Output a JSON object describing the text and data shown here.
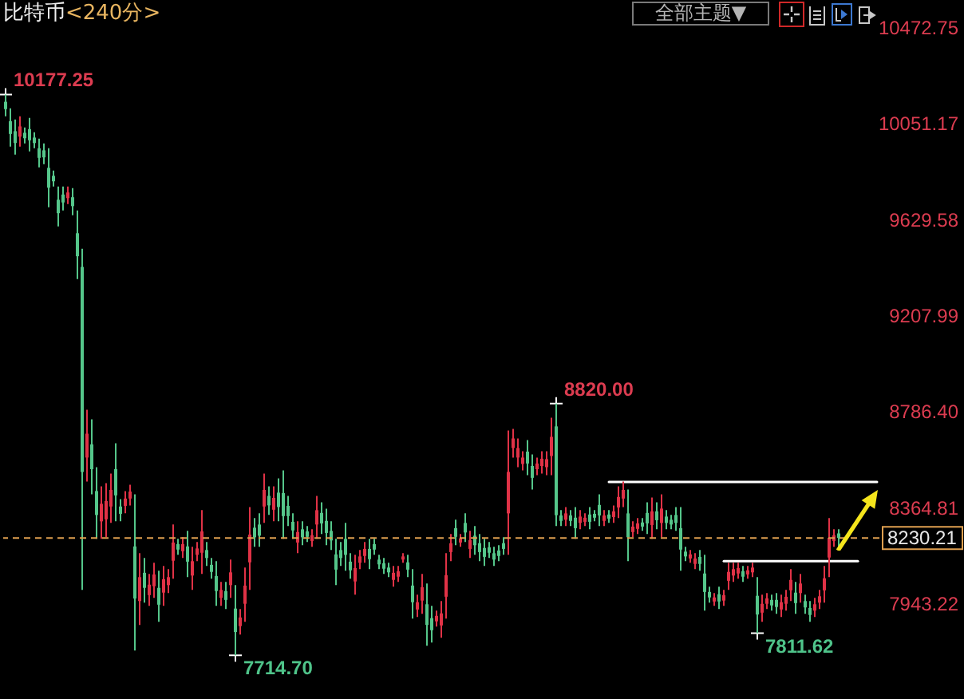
{
  "chart_data": {
    "type": "candlestick",
    "title": "比特币",
    "subtitle": "<240分>",
    "categories": [
      null,
      null,
      null,
      null,
      null,
      null,
      null,
      null,
      null,
      null,
      null,
      null,
      null,
      null,
      null,
      null,
      null,
      null,
      null,
      null,
      null,
      null,
      null,
      null,
      null,
      null,
      null,
      null,
      null,
      null,
      null,
      null,
      null,
      null,
      null,
      null,
      null,
      null,
      null,
      null,
      null,
      null,
      null,
      null,
      null,
      null,
      null,
      null,
      null,
      null,
      null,
      null,
      null,
      null,
      null,
      null,
      null,
      null,
      null,
      null,
      null,
      null,
      null,
      null,
      null,
      null,
      null,
      null,
      null,
      null,
      null,
      null,
      null,
      null,
      null,
      null,
      null,
      null,
      null,
      null,
      null,
      null,
      null,
      null,
      null,
      null,
      null,
      null,
      null,
      null,
      null,
      null,
      null,
      null,
      null,
      null,
      null,
      null,
      null,
      null,
      null,
      null,
      null,
      null,
      null,
      null,
      null,
      null,
      null,
      null,
      null,
      null,
      null,
      null,
      null,
      null,
      null,
      null,
      null,
      null,
      null,
      null,
      null,
      null,
      null,
      null,
      null,
      null,
      null,
      null,
      null,
      null,
      null,
      null,
      null,
      null,
      null,
      null,
      null,
      null,
      null,
      null,
      null,
      null,
      null,
      null,
      null,
      null,
      null,
      null,
      null,
      null,
      null,
      null,
      null,
      null,
      null,
      null,
      null,
      null,
      null,
      null,
      null,
      null,
      null,
      null,
      null,
      null,
      null,
      null,
      null,
      null,
      null,
      null,
      null,
      null,
      null,
      null,
      null,
      null,
      null,
      null,
      null
    ],
    "ohlc": [
      [
        10145,
        10177.25,
        10081,
        10113
      ],
      [
        10060,
        10116,
        9948,
        10004
      ],
      [
        10016,
        10067,
        9913,
        9964
      ],
      [
        9992,
        10081,
        9948,
        10037
      ],
      [
        10009,
        10032,
        9962,
        9985
      ],
      [
        10025,
        10074,
        9927,
        9976
      ],
      [
        9988,
        10011,
        9941,
        9964
      ],
      [
        9941,
        9983,
        9857,
        9899
      ],
      [
        9932,
        9962,
        9871,
        9901
      ],
      [
        9855,
        9941,
        9682,
        9768
      ],
      [
        9820,
        9843,
        9773,
        9796
      ],
      [
        9715,
        9773,
        9598,
        9656
      ],
      [
        9738,
        9773,
        9668,
        9703
      ],
      [
        9722,
        9773,
        9696,
        9747
      ],
      [
        9726,
        9766,
        9647,
        9687
      ],
      [
        9568,
        9668,
        9367,
        9467
      ],
      [
        9420,
        9500,
        8002,
        8520
      ],
      [
        8583,
        8793,
        8478,
        8688
      ],
      [
        8641,
        8751,
        8422,
        8532
      ],
      [
        8436,
        8541,
        8226,
        8331
      ],
      [
        8303,
        8457,
        8226,
        8380
      ],
      [
        8312,
        8471,
        8233,
        8392
      ],
      [
        8368,
        8513,
        8296,
        8441
      ],
      [
        8532,
        8646,
        8303,
        8417
      ],
      [
        8368,
        8401,
        8303,
        8336
      ],
      [
        8371,
        8436,
        8338,
        8403
      ],
      [
        8403,
        8464,
        8373,
        8434
      ],
      [
        8193,
        8422,
        7736,
        7964
      ],
      [
        7953,
        8163,
        7848,
        8058
      ],
      [
        8077,
        8142,
        7946,
        8011
      ],
      [
        7979,
        8072,
        7932,
        8025
      ],
      [
        8018,
        8121,
        7967,
        8070
      ],
      [
        8011,
        8086,
        7862,
        7937
      ],
      [
        7990,
        8107,
        7932,
        8049
      ],
      [
        8023,
        8093,
        7988,
        8058
      ],
      [
        8130,
        8289,
        8051,
        8210
      ],
      [
        8203,
        8226,
        8156,
        8179
      ],
      [
        8172,
        8233,
        8142,
        8203
      ],
      [
        8193,
        8261,
        8058,
        8126
      ],
      [
        8065,
        8191,
        8002,
        8128
      ],
      [
        8156,
        8212,
        8128,
        8184
      ],
      [
        8165,
        8352,
        8072,
        8259
      ],
      [
        8177,
        8212,
        8107,
        8142
      ],
      [
        8112,
        8142,
        8051,
        8081
      ],
      [
        8063,
        8128,
        7932,
        7997
      ],
      [
        7967,
        8037,
        7932,
        8002
      ],
      [
        7997,
        8037,
        7918,
        7958
      ],
      [
        8023,
        8135,
        7967,
        8079
      ],
      [
        7920,
        8023,
        7714.7,
        7817
      ],
      [
        7843,
        7918,
        7806,
        7881
      ],
      [
        7941,
        8100,
        7862,
        8021
      ],
      [
        8123,
        8366,
        8002,
        8245
      ],
      [
        8275,
        8317,
        8191,
        8233
      ],
      [
        8289,
        8338,
        8191,
        8240
      ],
      [
        8368,
        8513,
        8296,
        8441
      ],
      [
        8415,
        8457,
        8331,
        8373
      ],
      [
        8354,
        8457,
        8303,
        8406
      ],
      [
        8429,
        8492,
        8303,
        8366
      ],
      [
        8427,
        8527,
        8226,
        8326
      ],
      [
        8371,
        8415,
        8282,
        8326
      ],
      [
        8301,
        8338,
        8226,
        8263
      ],
      [
        8210,
        8303,
        8163,
        8256
      ],
      [
        8268,
        8303,
        8198,
        8233
      ],
      [
        8259,
        8282,
        8212,
        8235
      ],
      [
        8217,
        8268,
        8191,
        8242
      ],
      [
        8289,
        8415,
        8226,
        8352
      ],
      [
        8340,
        8387,
        8247,
        8294
      ],
      [
        8305,
        8359,
        8198,
        8252
      ],
      [
        8261,
        8303,
        8177,
        8219
      ],
      [
        8158,
        8226,
        8023,
        8091
      ],
      [
        8177,
        8212,
        8107,
        8142
      ],
      [
        8226,
        8296,
        8086,
        8156
      ],
      [
        8126,
        8163,
        8051,
        8088
      ],
      [
        8039,
        8156,
        7981,
        8098
      ],
      [
        8121,
        8177,
        8093,
        8149
      ],
      [
        8151,
        8212,
        8121,
        8182
      ],
      [
        8182,
        8226,
        8093,
        8137
      ],
      [
        8203,
        8226,
        8156,
        8179
      ],
      [
        8135,
        8156,
        8093,
        8114
      ],
      [
        8119,
        8142,
        8072,
        8095
      ],
      [
        8100,
        8121,
        8058,
        8079
      ],
      [
        8046,
        8107,
        8016,
        8077
      ],
      [
        8060,
        8107,
        8037,
        8084
      ],
      [
        8135,
        8163,
        8121,
        8149
      ],
      [
        8123,
        8156,
        8058,
        8091
      ],
      [
        8021,
        8093,
        7876,
        7948
      ],
      [
        7916,
        7981,
        7883,
        7948
      ],
      [
        7955,
        8072,
        7897,
        8014
      ],
      [
        7939,
        8030,
        7757,
        7848
      ],
      [
        7878,
        7932,
        7771,
        7825
      ],
      [
        7864,
        7911,
        7841,
        7888
      ],
      [
        7846,
        7953,
        7792,
        7899
      ],
      [
        7972,
        8163,
        7876,
        8067
      ],
      [
        8168,
        8247,
        8128,
        8207
      ],
      [
        8273,
        8310,
        8198,
        8235
      ],
      [
        8210,
        8247,
        8191,
        8228
      ],
      [
        8296,
        8338,
        8212,
        8254
      ],
      [
        8182,
        8261,
        8142,
        8221
      ],
      [
        8240,
        8282,
        8156,
        8198
      ],
      [
        8207,
        8247,
        8128,
        8168
      ],
      [
        8186,
        8226,
        8107,
        8147
      ],
      [
        8189,
        8212,
        8142,
        8165
      ],
      [
        8163,
        8191,
        8107,
        8135
      ],
      [
        8175,
        8198,
        8128,
        8151
      ],
      [
        8207,
        8233,
        8156,
        8182
      ],
      [
        8338,
        8702,
        8156,
        8520
      ],
      [
        8625,
        8709,
        8583,
        8667
      ],
      [
        8583,
        8667,
        8541,
        8625
      ],
      [
        8555,
        8611,
        8527,
        8583
      ],
      [
        8609,
        8660,
        8506,
        8557
      ],
      [
        8546,
        8597,
        8443,
        8494
      ],
      [
        8532,
        8583,
        8506,
        8557
      ],
      [
        8546,
        8611,
        8513,
        8578
      ],
      [
        8541,
        8611,
        8506,
        8576
      ],
      [
        8590,
        8758,
        8506,
        8674
      ],
      [
        8720,
        8820,
        8282,
        8330
      ],
      [
        8329,
        8352,
        8282,
        8305
      ],
      [
        8310,
        8366,
        8282,
        8338
      ],
      [
        8329,
        8352,
        8282,
        8305
      ],
      [
        8319,
        8366,
        8226,
        8273
      ],
      [
        8296,
        8352,
        8268,
        8324
      ],
      [
        8301,
        8338,
        8282,
        8319
      ],
      [
        8333,
        8366,
        8268,
        8301
      ],
      [
        8336,
        8352,
        8303,
        8319
      ],
      [
        8375,
        8422,
        8282,
        8329
      ],
      [
        8305,
        8352,
        8282,
        8329
      ],
      [
        8333,
        8352,
        8296,
        8315
      ],
      [
        8322,
        8373,
        8296,
        8347
      ],
      [
        8364,
        8457,
        8317,
        8410
      ],
      [
        8403,
        8478,
        8366,
        8441
      ],
      [
        8338,
        8443,
        8128,
        8233
      ],
      [
        8256,
        8303,
        8233,
        8280
      ],
      [
        8270,
        8317,
        8247,
        8294
      ],
      [
        8298,
        8317,
        8261,
        8280
      ],
      [
        8340,
        8387,
        8247,
        8294
      ],
      [
        8287,
        8408,
        8226,
        8347
      ],
      [
        8347,
        8387,
        8268,
        8308
      ],
      [
        8296,
        8422,
        8233,
        8359
      ],
      [
        8324,
        8352,
        8268,
        8296
      ],
      [
        8310,
        8331,
        8268,
        8289
      ],
      [
        8331,
        8366,
        8261,
        8296
      ],
      [
        8273,
        8366,
        8086,
        8179
      ],
      [
        8170,
        8191,
        8128,
        8149
      ],
      [
        8140,
        8177,
        8121,
        8158
      ],
      [
        8116,
        8163,
        8093,
        8140
      ],
      [
        8147,
        8177,
        8086,
        8116
      ],
      [
        8074,
        8156,
        7911,
        7993
      ],
      [
        7993,
        8016,
        7946,
        7969
      ],
      [
        7951,
        7988,
        7932,
        7969
      ],
      [
        7983,
        8016,
        7918,
        7951
      ],
      [
        7955,
        8002,
        7932,
        7979
      ],
      [
        8042,
        8121,
        8002,
        8081
      ],
      [
        8065,
        8121,
        8037,
        8093
      ],
      [
        8074,
        8121,
        8051,
        8098
      ],
      [
        8084,
        8107,
        8037,
        8060
      ],
      [
        8070,
        8107,
        8051,
        8088
      ],
      [
        8079,
        8121,
        8058,
        8100
      ],
      [
        7976,
        8058,
        7811.62,
        7894
      ],
      [
        7902,
        7981,
        7862,
        7941
      ],
      [
        7941,
        7988,
        7918,
        7965
      ],
      [
        7958,
        7981,
        7911,
        7934
      ],
      [
        7958,
        7988,
        7897,
        7927
      ],
      [
        7916,
        7981,
        7883,
        7948
      ],
      [
        7941,
        8002,
        7911,
        7972
      ],
      [
        8000,
        8093,
        7953,
        8046
      ],
      [
        7990,
        8037,
        7897,
        7944
      ],
      [
        7988,
        8072,
        7946,
        8030
      ],
      [
        7953,
        7981,
        7897,
        7925
      ],
      [
        7923,
        7953,
        7862,
        7892
      ],
      [
        7911,
        7967,
        7883,
        7939
      ],
      [
        7946,
        8002,
        7918,
        7974
      ],
      [
        8000,
        8107,
        7946,
        8053
      ],
      [
        8144,
        8317,
        8058,
        8231
      ],
      [
        8217,
        8268,
        8191,
        8242
      ],
      [
        8250,
        8268,
        8177,
        8230.21
      ],
      null,
      null,
      null,
      null,
      null,
      null,
      null,
      null
    ],
    "colors": [
      "#55c68a",
      "#55c68a",
      "#55c68a",
      "#e03246",
      "#55c68a",
      "#55c68a",
      "#55c68a",
      "#55c68a",
      "#55c68a",
      "#55c68a",
      "#55c68a",
      "#55c68a",
      "#55c68a",
      "#e03246",
      "#55c68a",
      "#55c68a",
      "#55c68a",
      "#e03246",
      "#55c68a",
      "#55c68a",
      "#e03246",
      "#e03246",
      "#e03246",
      "#55c68a",
      "#55c68a",
      "#e03246",
      "#e03246",
      "#55c68a",
      "#e03246",
      "#55c68a",
      "#e03246",
      "#e03246",
      "#55c68a",
      "#e03246",
      "#e03246",
      "#e03246",
      "#55c68a",
      "#e03246",
      "#55c68a",
      "#e03246",
      "#e03246",
      "#e03246",
      "#55c68a",
      "#55c68a",
      "#55c68a",
      "#e03246",
      "#55c68a",
      "#e03246",
      "#55c68a",
      "#e03246",
      "#e03246",
      "#e03246",
      "#55c68a",
      "#55c68a",
      "#e03246",
      "#55c68a",
      "#e03246",
      "#55c68a",
      "#55c68a",
      "#55c68a",
      "#55c68a",
      "#e03246",
      "#55c68a",
      "#55c68a",
      "#e03246",
      "#e03246",
      "#55c68a",
      "#55c68a",
      "#55c68a",
      "#55c68a",
      "#55c68a",
      "#55c68a",
      "#55c68a",
      "#e03246",
      "#e03246",
      "#e03246",
      "#55c68a",
      "#55c68a",
      "#55c68a",
      "#55c68a",
      "#55c68a",
      "#e03246",
      "#e03246",
      "#e03246",
      "#55c68a",
      "#55c68a",
      "#e03246",
      "#e03246",
      "#55c68a",
      "#55c68a",
      "#e03246",
      "#e03246",
      "#e03246",
      "#e03246",
      "#55c68a",
      "#e03246",
      "#55c68a",
      "#e03246",
      "#55c68a",
      "#55c68a",
      "#55c68a",
      "#55c68a",
      "#55c68a",
      "#55c68a",
      "#55c68a",
      "#e03246",
      "#e03246",
      "#e03246",
      "#e03246",
      "#55c68a",
      "#55c68a",
      "#e03246",
      "#e03246",
      "#e03246",
      "#e03246",
      "#55c68a",
      "#55c68a",
      "#e03246",
      "#55c68a",
      "#55c68a",
      "#e03246",
      "#e03246",
      "#55c68a",
      "#55c68a",
      "#55c68a",
      "#e03246",
      "#55c68a",
      "#e03246",
      "#e03246",
      "#e03246",
      "#55c68a",
      "#e03246",
      "#e03246",
      "#55c68a",
      "#55c68a",
      "#e03246",
      "#55c68a",
      "#e03246",
      "#55c68a",
      "#55c68a",
      "#55c68a",
      "#55c68a",
      "#55c68a",
      "#e03246",
      "#e03246",
      "#55c68a",
      "#55c68a",
      "#55c68a",
      "#e03246",
      "#55c68a",
      "#e03246",
      "#e03246",
      "#e03246",
      "#e03246",
      "#55c68a",
      "#e03246",
      "#e03246",
      "#55c68a",
      "#e03246",
      "#e03246",
      "#55c68a",
      "#55c68a",
      "#e03246",
      "#e03246",
      "#e03246",
      "#55c68a",
      "#e03246",
      "#55c68a",
      "#55c68a",
      "#e03246",
      "#e03246",
      "#e03246",
      "#e03246",
      "#e03246",
      "#55c68a",
      null,
      null,
      null,
      null,
      null,
      null,
      null,
      null
    ],
    "value_labels": [
      "10177.25",
      null,
      null,
      null,
      null,
      null,
      null,
      null,
      null,
      null,
      null,
      null,
      null,
      null,
      null,
      null,
      null,
      null,
      null,
      null,
      null,
      null,
      null,
      null,
      null,
      null,
      null,
      null,
      null,
      null,
      null,
      null,
      null,
      null,
      null,
      null,
      null,
      null,
      null,
      null,
      null,
      null,
      null,
      null,
      null,
      null,
      null,
      null,
      "7714.70",
      null,
      null,
      null,
      null,
      null,
      null,
      null,
      null,
      null,
      null,
      null,
      null,
      null,
      null,
      null,
      null,
      null,
      null,
      null,
      null,
      null,
      null,
      null,
      null,
      null,
      null,
      null,
      null,
      null,
      null,
      null,
      null,
      null,
      null,
      null,
      null,
      null,
      null,
      null,
      null,
      null,
      null,
      null,
      null,
      null,
      null,
      null,
      null,
      null,
      null,
      null,
      null,
      null,
      null,
      null,
      null,
      null,
      null,
      null,
      null,
      null,
      null,
      null,
      null,
      null,
      null,
      "8820.00",
      null,
      null,
      null,
      null,
      null,
      null,
      null,
      null,
      null,
      null,
      null,
      null,
      null,
      null,
      null,
      null,
      null,
      null,
      null,
      null,
      null,
      null,
      null,
      null,
      null,
      null,
      null,
      null,
      null,
      null,
      null,
      null,
      null,
      null,
      null,
      null,
      null,
      null,
      null,
      null,
      null,
      "7811.62",
      null,
      null,
      null,
      null,
      null,
      null,
      null,
      null,
      null,
      null,
      null,
      null,
      null,
      null,
      null,
      null,
      null,
      null,
      null,
      null,
      null,
      null,
      null,
      null,
      null
    ],
    "series": [
      {
        "type": "line",
        "color": "#ffffff",
        "values": [
          null,
          null,
          null,
          null,
          null,
          null,
          null,
          null,
          null,
          null,
          null,
          null,
          null,
          null,
          null,
          null,
          null,
          null,
          null,
          null,
          null,
          null,
          null,
          null,
          null,
          null,
          null,
          null,
          null,
          null,
          null,
          null,
          null,
          null,
          null,
          null,
          null,
          null,
          null,
          null,
          null,
          null,
          null,
          null,
          null,
          null,
          null,
          null,
          null,
          null,
          null,
          null,
          null,
          null,
          null,
          null,
          null,
          null,
          null,
          null,
          null,
          null,
          null,
          null,
          null,
          null,
          null,
          null,
          null,
          null,
          null,
          null,
          null,
          null,
          null,
          null,
          null,
          null,
          null,
          null,
          null,
          null,
          null,
          null,
          null,
          null,
          null,
          null,
          null,
          null,
          null,
          null,
          null,
          null,
          null,
          null,
          null,
          null,
          null,
          null,
          null,
          null,
          null,
          null,
          null,
          null,
          null,
          null,
          null,
          null,
          null,
          null,
          null,
          null,
          null,
          null,
          null,
          null,
          null,
          null,
          null,
          null,
          null,
          null,
          null,
          null,
          8476,
          8476,
          8476,
          8476,
          8476,
          8476,
          8476,
          8476,
          8476,
          8476,
          8476,
          8476,
          8476,
          8476,
          8476,
          8476,
          8476,
          8476,
          8476,
          8476,
          8476,
          8476,
          8476,
          8476,
          8476,
          8476,
          8476,
          8476,
          8476,
          8476,
          8476,
          8476,
          8476,
          8476,
          8476,
          8476,
          8476,
          8476,
          8476,
          8476,
          8476,
          8476,
          8476,
          8476,
          8476,
          8476,
          8476,
          8476,
          8476,
          8476,
          8476,
          8476,
          8476,
          8476,
          8476,
          8476,
          8476
        ]
      },
      {
        "type": "line",
        "color": "#ffffff",
        "values": [
          null,
          null,
          null,
          null,
          null,
          null,
          null,
          null,
          null,
          null,
          null,
          null,
          null,
          null,
          null,
          null,
          null,
          null,
          null,
          null,
          null,
          null,
          null,
          null,
          null,
          null,
          null,
          null,
          null,
          null,
          null,
          null,
          null,
          null,
          null,
          null,
          null,
          null,
          null,
          null,
          null,
          null,
          null,
          null,
          null,
          null,
          null,
          null,
          null,
          null,
          null,
          null,
          null,
          null,
          null,
          null,
          null,
          null,
          null,
          null,
          null,
          null,
          null,
          null,
          null,
          null,
          null,
          null,
          null,
          null,
          null,
          null,
          null,
          null,
          null,
          null,
          null,
          null,
          null,
          null,
          null,
          null,
          null,
          null,
          null,
          null,
          null,
          null,
          null,
          null,
          null,
          null,
          null,
          null,
          null,
          null,
          null,
          null,
          null,
          null,
          null,
          null,
          null,
          null,
          null,
          null,
          null,
          null,
          null,
          null,
          null,
          null,
          null,
          null,
          null,
          null,
          null,
          null,
          null,
          null,
          null,
          null,
          null,
          null,
          null,
          null,
          null,
          null,
          null,
          null,
          null,
          null,
          null,
          null,
          null,
          null,
          null,
          null,
          null,
          null,
          null,
          null,
          null,
          null,
          null,
          null,
          null,
          null,
          null,
          null,
          8128,
          8128,
          8128,
          8128,
          8128,
          8128,
          8128,
          8128,
          8128,
          8128,
          8128,
          8128,
          8128,
          8128,
          8128,
          8128,
          8128,
          8128,
          8128,
          8128,
          8128,
          8128,
          8128,
          8128,
          8128,
          8128,
          8128,
          8128,
          8128,
          null,
          null,
          null,
          null
        ]
      }
    ],
    "ylim": [
      7523,
      10592
    ],
    "yticks": [
      10472.75,
      10051.17,
      9629.58,
      9207.99,
      {
        "value": 8786.4,
        "label": "8786.40"
      },
      8364.81,
      7943.22
    ],
    "ref_lines": [
      {
        "axis": "y",
        "value": 8230.21,
        "label": "8230.21",
        "color": "#e0a050",
        "line_style": "dashed"
      }
    ],
    "annotations": [
      "全部主题▼"
    ],
    "grid": false,
    "tick_labels": "y"
  }
}
